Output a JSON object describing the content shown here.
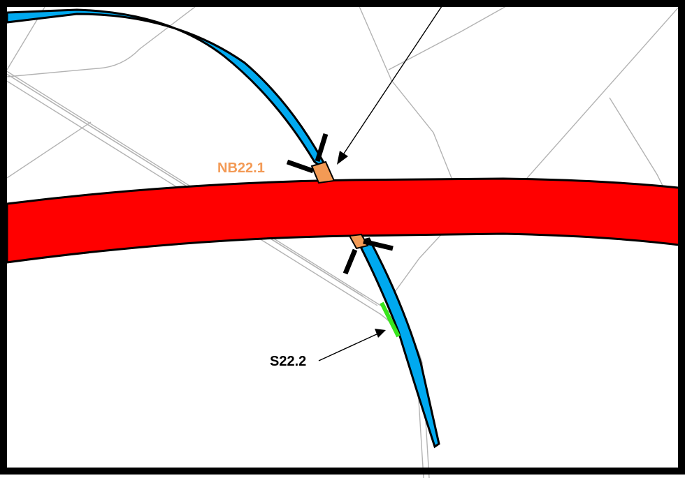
{
  "labels": {
    "nb": "NB22.1",
    "s": "S22.2"
  },
  "colors": {
    "crossing_road": "#ff0000",
    "river": "#00a9ef",
    "nb_segment": "#f39a55",
    "s_segment": "#39e51c",
    "frame": "#000000",
    "parcel_lines": "#b3b3b3",
    "nb_label": "#f39a55",
    "s_label": "#000000"
  }
}
